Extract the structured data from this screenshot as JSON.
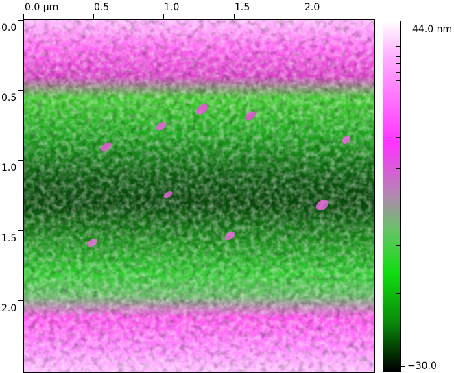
{
  "image": {
    "x_unit": "µm",
    "x_ticks": [
      "0.0",
      "0.5",
      "1.0",
      "1.5",
      "2.0"
    ],
    "y_ticks": [
      "0.0",
      "0.5",
      "1.0",
      "1.5",
      "2.0"
    ]
  },
  "colorbar": {
    "max_label": "44.0 nm",
    "min_label": "−30.0",
    "colors": {
      "high": "#ffffff",
      "upper": "#ff33ff",
      "mid": "#999999",
      "lower": "#11dd11",
      "low": "#000000"
    }
  }
}
